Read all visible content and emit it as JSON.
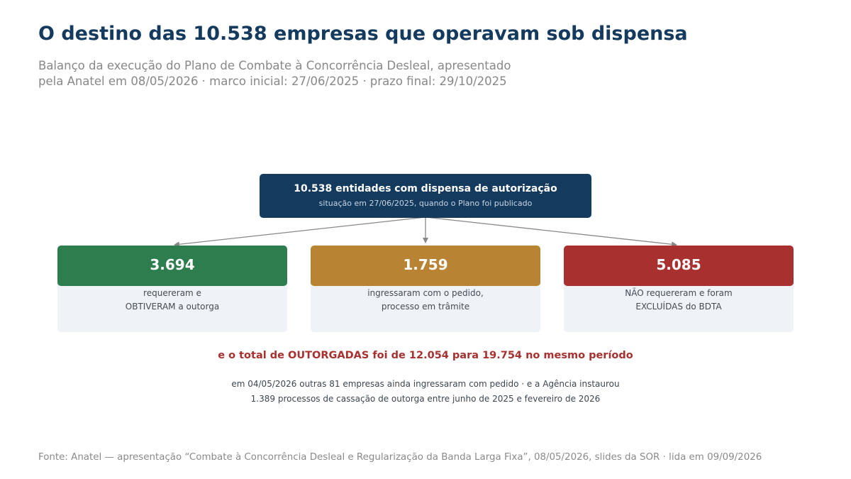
{
  "title": "O destino das 10.538 empresas que operavam sob dispensa",
  "subtitle": {
    "line1": "Balanço da execução do Plano de Combate à Concorrência Desleal, apresentado",
    "line2": "pela Anatel em 08/05/2026 · marco inicial: 27/06/2025 · prazo final: 29/10/2025"
  },
  "root": {
    "title": "10.538 entidades com dispensa de autorização",
    "subtitle": "situação em 27/06/2025, quando o Plano foi publicado",
    "color": "#143a5e"
  },
  "outcomes": [
    {
      "value": "3.694",
      "line1": "requereram e",
      "line2": "OBTIVERAM a outorga",
      "color": "#2e7d4f"
    },
    {
      "value": "1.759",
      "line1": "ingressaram com o pedido,",
      "line2": "processo em trâmite",
      "color": "#b88332"
    },
    {
      "value": "5.085",
      "line1": "NÃO requereram e foram",
      "line2": "EXCLUÍDAS do BDTA",
      "color": "#a8302e"
    }
  ],
  "highlight": {
    "text": "e o total de OUTORGADAS foi de 12.054 para 19.754 no mesmo período",
    "color": "#a8302e"
  },
  "note": {
    "line1": "em 04/05/2026 outras 81 empresas ainda ingressaram com pedido · e a Agência instaurou",
    "line2": "1.389 processos de cassação de outorga entre junho de 2025 e fevereiro de 2026"
  },
  "source": "Fonte: Anatel — apresentação “Combate à Concorrência Desleal e Regularização da Banda Larga Fixa”, 08/05/2026, slides da SOR · lida em 09/09/2026",
  "connector_color": "#888888"
}
